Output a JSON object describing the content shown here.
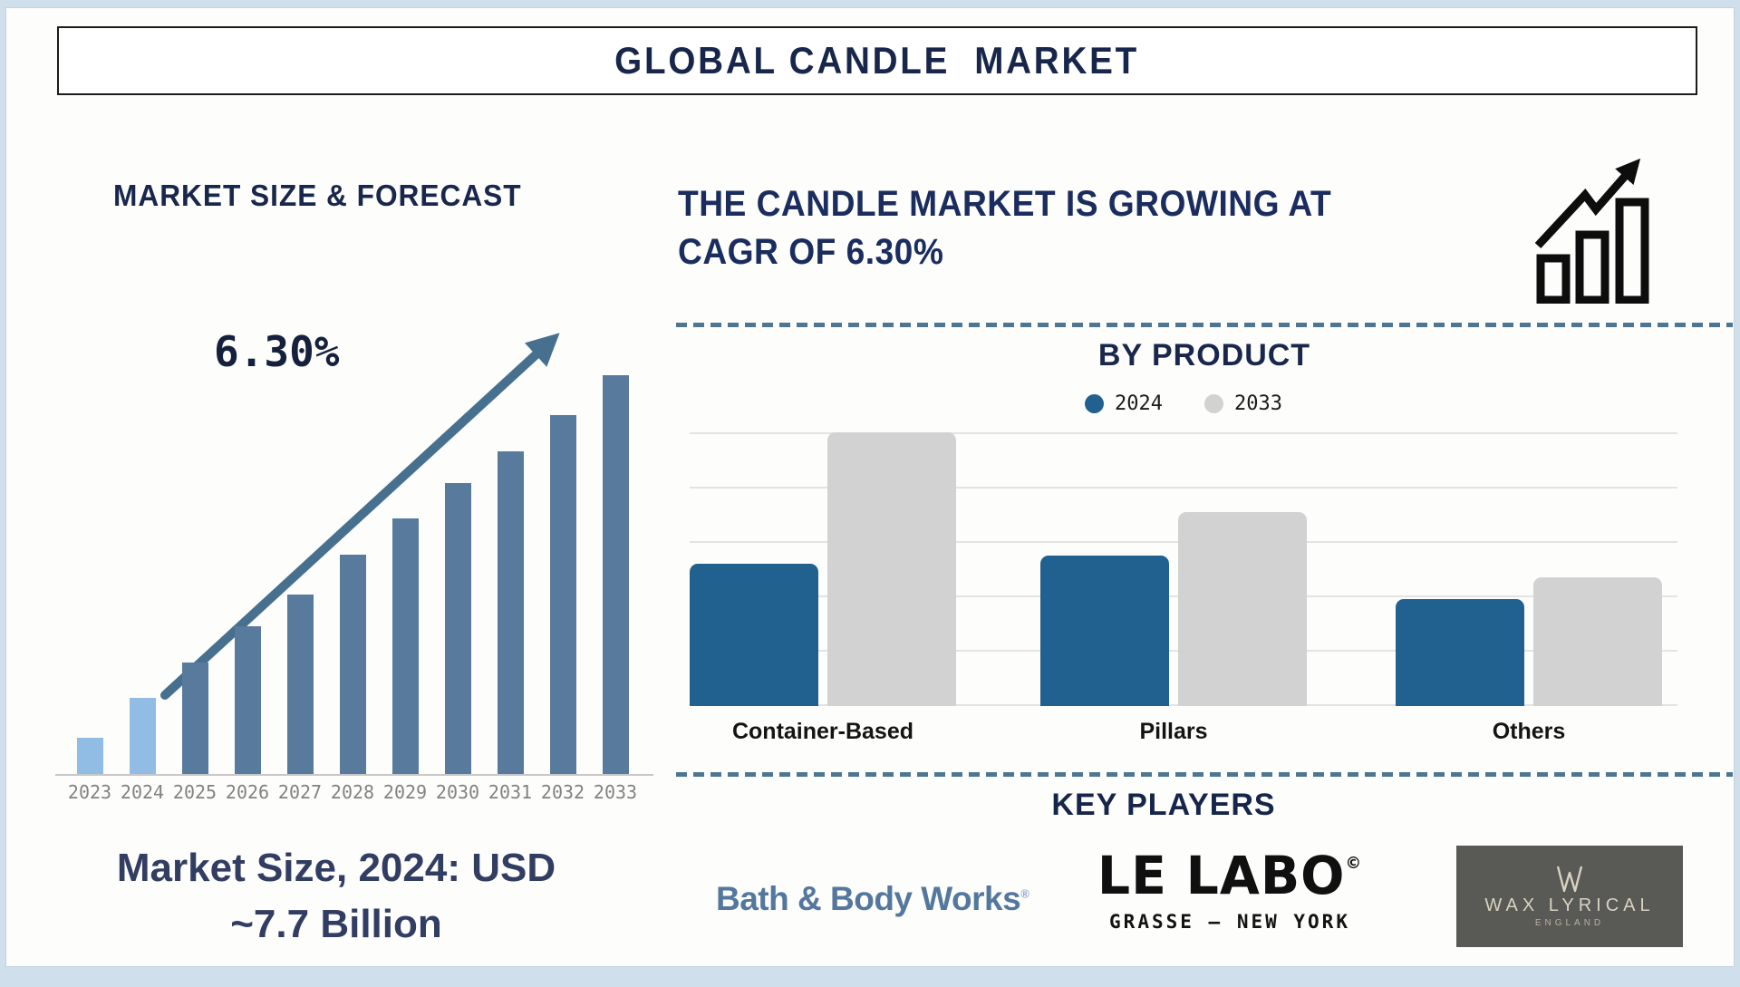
{
  "page": {
    "title": "GLOBAL CANDLE  MARKET"
  },
  "left": {
    "heading": "MARKET SIZE & FORECAST",
    "caption_line1": "Market Size, 2024: USD",
    "caption_line2": "~7.7 Billion"
  },
  "right": {
    "heading_line1": "THE CANDLE MARKET IS GROWING AT",
    "heading_line2": "CAGR OF 6.30%",
    "growth_icon": "bar-chart-with-rising-arrow",
    "key_players": {
      "title": "KEY PLAYERS",
      "players": [
        {
          "name": "Bath & Body Works",
          "reg_mark": "®",
          "brand_color": "#54779e"
        },
        {
          "name": "LE LABO",
          "mark": "©",
          "subtitle": "GRASSE — NEW YORK",
          "brand_color": "#101010"
        },
        {
          "name": "WAX LYRICAL",
          "subtitle": "ENGLAND",
          "box_color": "#595955",
          "text_color": "#d8d2c2"
        }
      ]
    }
  },
  "chart_data": [
    {
      "type": "bar",
      "title": "MARKET SIZE & FORECAST",
      "annotation": "6.30%",
      "caption": "Market Size, 2024: USD ~7.7 Billion",
      "categories": [
        "2023",
        "2024",
        "2025",
        "2026",
        "2027",
        "2028",
        "2029",
        "2030",
        "2031",
        "2032",
        "2033"
      ],
      "values_pct_of_max": [
        9,
        19,
        28,
        37,
        45,
        55,
        64,
        73,
        81,
        90,
        100
      ],
      "note": "y-axis unlabeled; bar heights rise linearly from 2023 to 2033; 2024 market size ~USD 7.7B, CAGR 6.30%",
      "xlabel": "",
      "ylabel": "",
      "grid": false,
      "colors": {
        "highlight": "#91bce3",
        "default": "#587a9d",
        "arrow": "#47708f"
      },
      "highlight_years": [
        "2023",
        "2024"
      ]
    },
    {
      "type": "bar",
      "title": "BY PRODUCT",
      "categories": [
        "Container-Based",
        "Pillars",
        "Others"
      ],
      "series": [
        {
          "name": "2024",
          "color": "#21618f",
          "values_gridline_units": [
            2.6,
            2.75,
            1.95
          ]
        },
        {
          "name": "2033",
          "color": "#d2d2d2",
          "values_gridline_units": [
            5.0,
            3.55,
            2.35
          ]
        }
      ],
      "ylim": [
        0,
        5
      ],
      "note": "y-axis unlabeled; values measured in gridline intervals (5 intervals to top line)",
      "grid": true,
      "legend_position": "top-center"
    }
  ]
}
